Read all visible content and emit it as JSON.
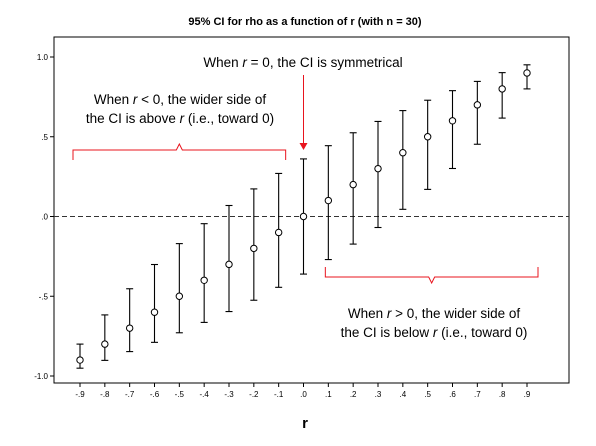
{
  "chart_data": {
    "type": "scatter",
    "title": "95% CI for rho as a function of r (with n = 30)",
    "xlabel": "r",
    "ylabel": "",
    "x_tick_labels": [
      "-.9",
      "-.8",
      "-.7",
      "-.6",
      "-.5",
      "-.4",
      "-.3",
      "-.2",
      "-.1",
      ".0",
      ".1",
      ".2",
      ".3",
      ".4",
      ".5",
      ".6",
      ".7",
      ".8",
      ".9"
    ],
    "y_tick_labels": [
      "-1.0",
      "-.5",
      ".0",
      ".5",
      "1.0"
    ],
    "ylim": [
      -1.05,
      1.0
    ],
    "grid": false,
    "reference_line": {
      "y": 0,
      "style": "dashed"
    },
    "series": [
      {
        "points": [
          {
            "r": -0.9,
            "estimate": -0.9,
            "lower": -0.951,
            "upper": -0.8
          },
          {
            "r": -0.8,
            "estimate": -0.8,
            "lower": -0.902,
            "upper": -0.617
          },
          {
            "r": -0.7,
            "estimate": -0.7,
            "lower": -0.847,
            "upper": -0.453
          },
          {
            "r": -0.6,
            "estimate": -0.6,
            "lower": -0.789,
            "upper": -0.301
          },
          {
            "r": -0.5,
            "estimate": -0.5,
            "lower": -0.729,
            "upper": -0.17
          },
          {
            "r": -0.4,
            "estimate": -0.4,
            "lower": -0.664,
            "upper": -0.045
          },
          {
            "r": -0.3,
            "estimate": -0.3,
            "lower": -0.596,
            "upper": 0.069
          },
          {
            "r": -0.2,
            "estimate": -0.2,
            "lower": -0.525,
            "upper": 0.173
          },
          {
            "r": -0.1,
            "estimate": -0.1,
            "lower": -0.444,
            "upper": 0.27
          },
          {
            "r": 0.0,
            "estimate": 0.0,
            "lower": -0.361,
            "upper": 0.361
          },
          {
            "r": 0.1,
            "estimate": 0.1,
            "lower": -0.27,
            "upper": 0.444
          },
          {
            "r": 0.2,
            "estimate": 0.2,
            "lower": -0.173,
            "upper": 0.525
          },
          {
            "r": 0.3,
            "estimate": 0.3,
            "lower": -0.069,
            "upper": 0.596
          },
          {
            "r": 0.4,
            "estimate": 0.4,
            "lower": 0.045,
            "upper": 0.664
          },
          {
            "r": 0.5,
            "estimate": 0.5,
            "lower": 0.17,
            "upper": 0.729
          },
          {
            "r": 0.6,
            "estimate": 0.6,
            "lower": 0.301,
            "upper": 0.789
          },
          {
            "r": 0.7,
            "estimate": 0.7,
            "lower": 0.453,
            "upper": 0.847
          },
          {
            "r": 0.8,
            "estimate": 0.8,
            "lower": 0.617,
            "upper": 0.902
          },
          {
            "r": 0.9,
            "estimate": 0.9,
            "lower": 0.8,
            "upper": 0.951
          }
        ]
      }
    ],
    "annotations": [
      {
        "id": "zero",
        "lines": [
          [
            {
              "t": "When "
            },
            {
              "t": "r",
              "i": true
            },
            {
              "t": " = 0, the CI is symmetrical"
            }
          ]
        ],
        "arrow_to_r": 0.0
      },
      {
        "id": "negative",
        "lines": [
          [
            {
              "t": "When "
            },
            {
              "t": "r",
              "i": true
            },
            {
              "t": " < 0, the wider side of"
            }
          ],
          [
            {
              "t": "the CI is above "
            },
            {
              "t": "r",
              "i": true
            },
            {
              "t": " (i.e., toward 0)"
            }
          ]
        ],
        "brace_span": [
          -0.9,
          -0.1
        ],
        "brace_side": "above"
      },
      {
        "id": "positive",
        "lines": [
          [
            {
              "t": "When "
            },
            {
              "t": "r",
              "i": true
            },
            {
              "t": " > 0, the wider side of"
            }
          ],
          [
            {
              "t": "the CI is below "
            },
            {
              "t": "r",
              "i": true
            },
            {
              "t": " (i.e., toward 0)"
            }
          ]
        ],
        "brace_span": [
          0.1,
          0.9
        ],
        "brace_side": "below"
      }
    ],
    "colors": {
      "plot_background": "#ffffff",
      "plot_border": "#000000",
      "error_bar": "#000000",
      "annotation": "#e8141e"
    }
  }
}
